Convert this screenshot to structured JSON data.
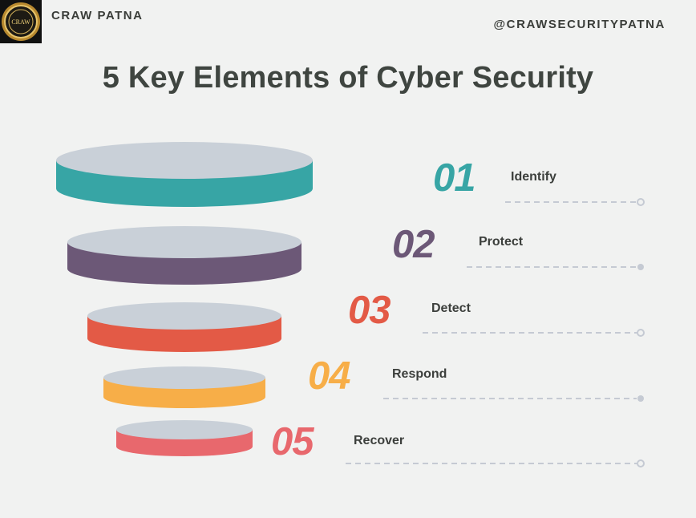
{
  "header": {
    "brand": "CRAW PATNA",
    "handle": "@CRAWSECURITYPATNA",
    "logo_text": "CRAW"
  },
  "title": "5 Key Elements of Cyber Security",
  "colors": {
    "background": "#f1f2f1",
    "disc_top": "#c9d0d8",
    "dash": "#c5cad3",
    "text": "#3f4540"
  },
  "steps": [
    {
      "number": "01",
      "label": "Identify",
      "color": "#37a5a5"
    },
    {
      "number": "02",
      "label": "Protect",
      "color": "#6c5877"
    },
    {
      "number": "03",
      "label": "Detect",
      "color": "#e35a46"
    },
    {
      "number": "04",
      "label": "Respond",
      "color": "#f7ae48"
    },
    {
      "number": "05",
      "label": "Recover",
      "color": "#e8686d"
    }
  ]
}
